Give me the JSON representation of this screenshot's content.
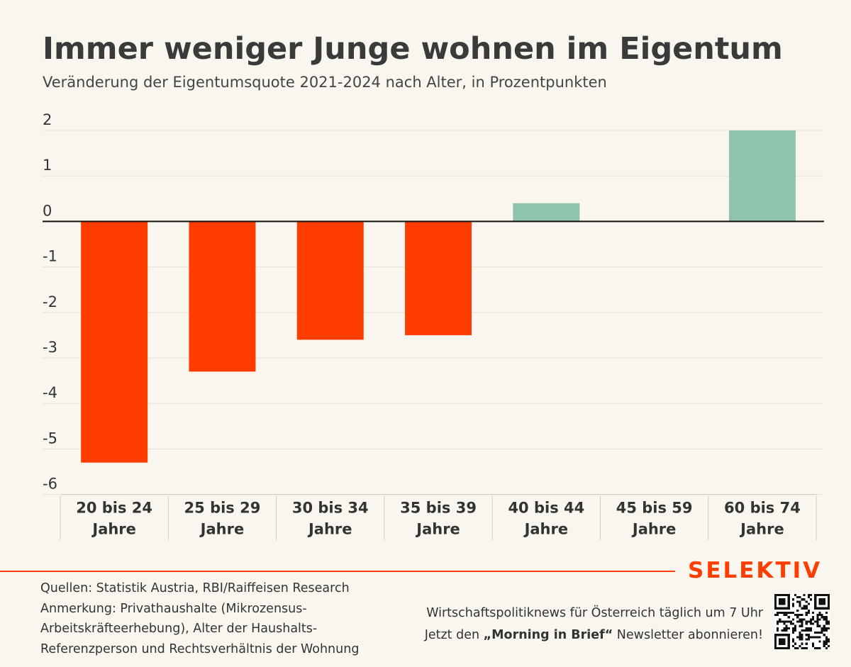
{
  "title": "Immer weniger Junge wohnen im Eigentum",
  "subtitle": "Veränderung der Eigentumsquote 2021-2024 nach Alter, in Prozentpunkten",
  "chart_data": {
    "type": "bar",
    "categories": [
      [
        "20 bis 24",
        "Jahre"
      ],
      [
        "25 bis 29",
        "Jahre"
      ],
      [
        "30 bis 34",
        "Jahre"
      ],
      [
        "35 bis 39",
        "Jahre"
      ],
      [
        "40 bis 44",
        "Jahre"
      ],
      [
        "45 bis 59",
        "Jahre"
      ],
      [
        "60 bis 74",
        "Jahre"
      ]
    ],
    "values": [
      -5.3,
      -3.3,
      -2.6,
      -2.5,
      0.4,
      0.0,
      2.0
    ],
    "ylim": [
      -6,
      2
    ],
    "yticks": [
      2,
      1,
      0,
      -1,
      -2,
      -3,
      -4,
      -5,
      -6
    ],
    "negative_color": "#ff3d00",
    "positive_color": "#8fc3ab",
    "grid": true
  },
  "footer": {
    "brand": "SELEKTIV",
    "notes": [
      "Quellen: Statistik Austria, RBI/Raiffeisen Research",
      "Anmerkung: Privathaushalte (Mikrozensus-",
      "Arbeitskräfteerhebung), Alter der Haushalts-",
      "Referenzperson und Rechtsverhältnis der Wohnung"
    ],
    "promo_line1": "Wirtschaftspolitiknews für Österreich täglich um 7 Uhr",
    "promo_line2_pre": "Jetzt den ",
    "promo_line2_bold": "„Morning in Brief“",
    "promo_line2_post": " Newsletter abonnieren!",
    "qr_icon": "qr-code-icon"
  }
}
